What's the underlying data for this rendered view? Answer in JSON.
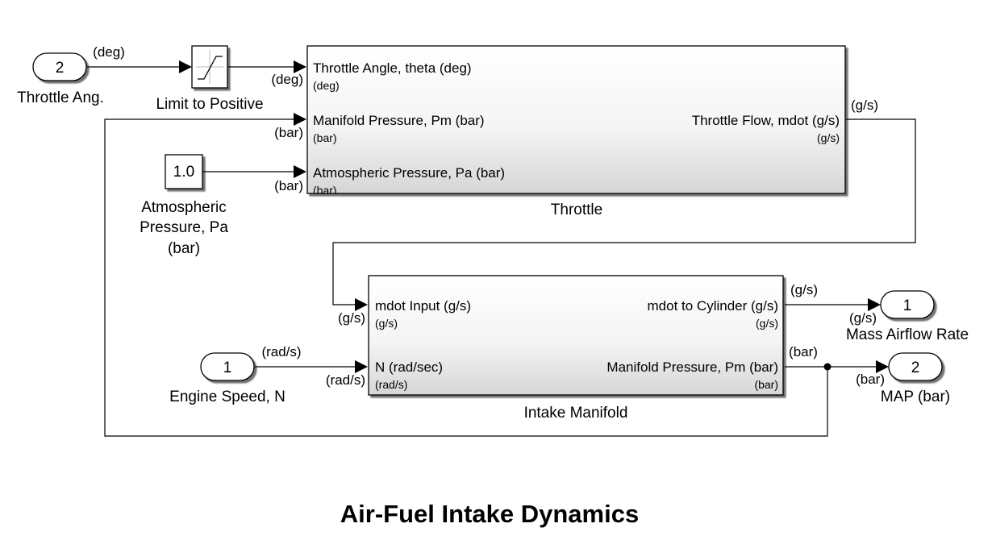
{
  "diagram_title": "Air-Fuel Intake Dynamics",
  "inports": {
    "throttle_ang": {
      "number": "2",
      "label": "Throttle Ang.",
      "signal_unit": "(deg)"
    },
    "engine_speed": {
      "number": "1",
      "label": "Engine Speed, N",
      "signal_unit": "(rad/s)"
    }
  },
  "outports": {
    "mass_airflow": {
      "number": "1",
      "label": "Mass Airflow Rate",
      "signal_unit": "(g/s)"
    },
    "map": {
      "number": "2",
      "label": "MAP (bar)",
      "signal_unit": "(bar)"
    }
  },
  "saturation": {
    "label": "Limit to Positive",
    "out_unit": "(deg)"
  },
  "constant": {
    "value": "1.0",
    "label_lines": [
      "Atmospheric",
      "Pressure, Pa",
      "(bar)"
    ],
    "out_unit": "(bar)"
  },
  "throttle_block": {
    "name": "Throttle",
    "inputs": [
      {
        "label": "Throttle Angle, theta (deg)",
        "unit": "(deg)",
        "wire_unit": "(deg)"
      },
      {
        "label": "Manifold Pressure, Pm (bar)",
        "unit": "(bar)",
        "wire_unit": "(bar)"
      },
      {
        "label": "Atmospheric Pressure, Pa (bar)",
        "unit": "(bar)",
        "wire_unit": "(bar)"
      }
    ],
    "output": {
      "label": "Throttle  Flow, mdot  (g/s)",
      "unit": "(g/s)",
      "wire_unit": "(g/s)"
    }
  },
  "intake_block": {
    "name": "Intake Manifold",
    "inputs": [
      {
        "label": "mdot Input  (g/s)",
        "unit": "(g/s)",
        "wire_unit": "(g/s)"
      },
      {
        "label": "N (rad/sec)",
        "unit": "(rad/s)",
        "wire_unit": "(rad/s)"
      }
    ],
    "outputs": [
      {
        "label": "mdot to Cylinder  (g/s)",
        "unit": "(g/s)",
        "wire_unit": "(g/s)",
        "dest_unit": "(g/s)"
      },
      {
        "label": "Manifold Pressure, Pm (bar)",
        "unit": "(bar)",
        "wire_unit": "(bar)",
        "dest_unit": "(bar)"
      }
    ]
  }
}
